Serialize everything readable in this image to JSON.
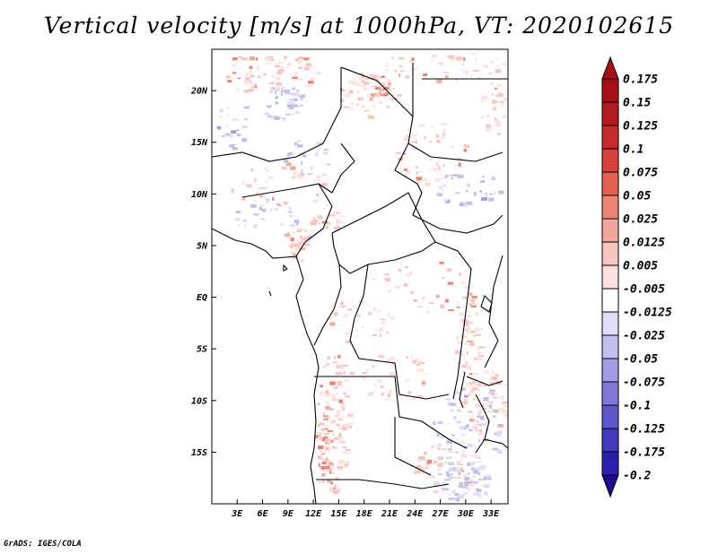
{
  "title": "Vertical velocity [m/s] at 1000hPa, VT: 2020102615",
  "credit": "GrADS: IGES/COLA",
  "map": {
    "lon_range": [
      0,
      35
    ],
    "lat_range": [
      -20,
      24
    ],
    "lat_ticks": [
      {
        "lat": 20,
        "label": "20N"
      },
      {
        "lat": 15,
        "label": "15N"
      },
      {
        "lat": 10,
        "label": "10N"
      },
      {
        "lat": 5,
        "label": "5N"
      },
      {
        "lat": 0,
        "label": "EQ"
      },
      {
        "lat": -5,
        "label": "5S"
      },
      {
        "lat": -10,
        "label": "10S"
      },
      {
        "lat": -15,
        "label": "15S"
      }
    ],
    "lon_ticks": [
      {
        "lon": 3,
        "label": "3E"
      },
      {
        "lon": 6,
        "label": "6E"
      },
      {
        "lon": 9,
        "label": "9E"
      },
      {
        "lon": 12,
        "label": "12E"
      },
      {
        "lon": 15,
        "label": "15E"
      },
      {
        "lon": 18,
        "label": "18E"
      },
      {
        "lon": 21,
        "label": "21E"
      },
      {
        "lon": 24,
        "label": "24E"
      },
      {
        "lon": 27,
        "label": "27E"
      },
      {
        "lon": 30,
        "label": "30E"
      },
      {
        "lon": 33,
        "label": "33E"
      }
    ]
  },
  "colorbar": {
    "levels": [
      {
        "label": "0.175",
        "color": "#a50f15"
      },
      {
        "label": "0.15",
        "color": "#b31b1e"
      },
      {
        "label": "0.125",
        "color": "#c62a2a"
      },
      {
        "label": "0.1",
        "color": "#d63f3a"
      },
      {
        "label": "0.075",
        "color": "#e25f52"
      },
      {
        "label": "0.05",
        "color": "#ec8576"
      },
      {
        "label": "0.025",
        "color": "#f3a79c"
      },
      {
        "label": "0.0125",
        "color": "#f8c6bf"
      },
      {
        "label": "0.005",
        "color": "#fce2de"
      },
      {
        "label": "-0.005",
        "color": "#ffffff"
      },
      {
        "label": "-0.0125",
        "color": "#dedcf6"
      },
      {
        "label": "-0.025",
        "color": "#c2bfee"
      },
      {
        "label": "-0.05",
        "color": "#a29ce4"
      },
      {
        "label": "-0.075",
        "color": "#8077d8"
      },
      {
        "label": "-0.1",
        "color": "#6157cc"
      },
      {
        "label": "-0.125",
        "color": "#4539bf"
      },
      {
        "label": "-0.175",
        "color": "#2d1fae"
      },
      {
        "label": "-0.2",
        "color": "#1a0a96"
      }
    ],
    "bottom_color": "#1a0a96",
    "top_color": "#a50f15"
  }
}
